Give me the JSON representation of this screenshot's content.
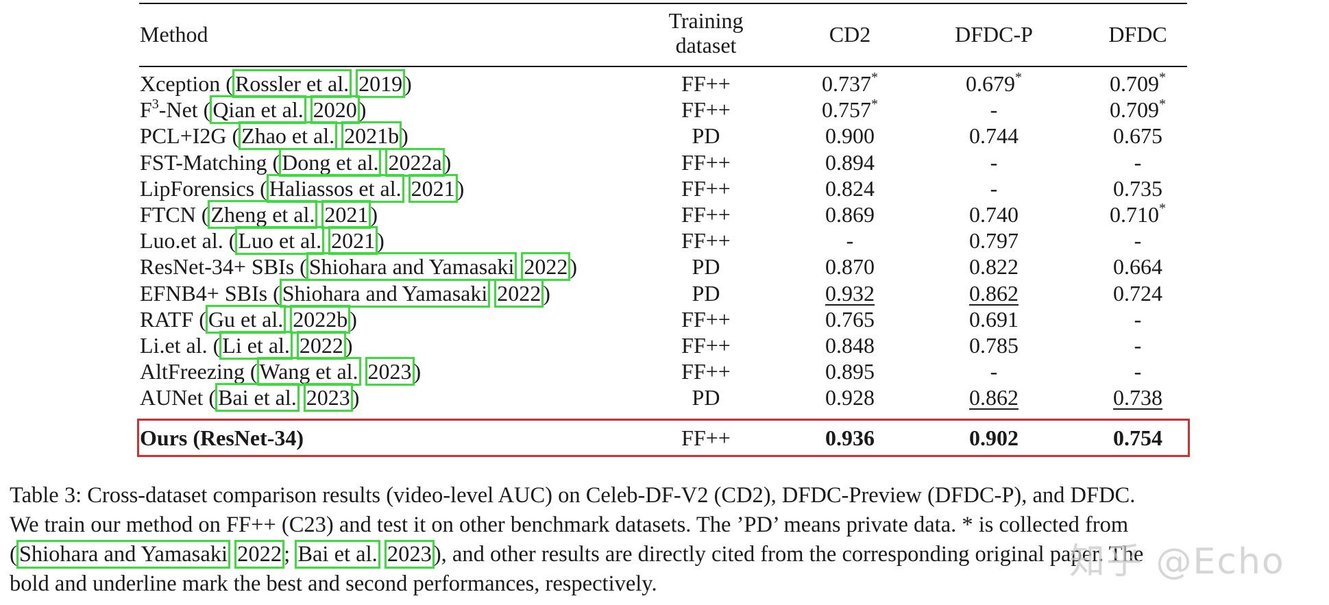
{
  "headers": {
    "method": "Method",
    "training_line1": "Training",
    "training_line2": "dataset",
    "cd2": "CD2",
    "dfdcp": "DFDC-P",
    "dfdc": "DFDC"
  },
  "rows": [
    {
      "name": "Xception (",
      "cite1": "Rossler et al.",
      "cite2": "2019",
      "close": ")",
      "train": "FF++",
      "cd2": "0.737",
      "cd2_star": "*",
      "dfdcp": "0.679",
      "dfdcp_star": "*",
      "dfdc": "0.709",
      "dfdc_star": "*"
    },
    {
      "name_pre": "F",
      "name_sup": "3",
      "name": "-Net (",
      "cite1": "Qian et al.",
      "cite2": "2020",
      "close": ")",
      "train": "FF++",
      "cd2": "0.757",
      "cd2_star": "*",
      "dfdcp": "-",
      "dfdc": "0.709",
      "dfdc_star": "*"
    },
    {
      "name": "PCL+I2G (",
      "cite1": "Zhao et al.",
      "cite2": "2021b",
      "close": ")",
      "train": "PD",
      "cd2": "0.900",
      "dfdcp": "0.744",
      "dfdc": "0.675"
    },
    {
      "name": "FST-Matching (",
      "cite1": "Dong et al.",
      "cite2": "2022a",
      "close": ")",
      "train": "FF++",
      "cd2": "0.894",
      "dfdcp": "-",
      "dfdc": "-"
    },
    {
      "name": "LipForensics (",
      "cite1": "Haliassos et al.",
      "cite2": "2021",
      "close": ")",
      "train": "FF++",
      "cd2": "0.824",
      "dfdcp": "-",
      "dfdc": "0.735"
    },
    {
      "name": "FTCN (",
      "cite1": "Zheng et al.",
      "cite2": "2021",
      "close": ")",
      "train": "FF++",
      "cd2": "0.869",
      "dfdcp": "0.740",
      "dfdc": "0.710",
      "dfdc_star": "*"
    },
    {
      "name": "Luo.et al. (",
      "cite1": "Luo et al.",
      "cite2": "2021",
      "close": ")",
      "train": "FF++",
      "cd2": "-",
      "dfdcp": "0.797",
      "dfdc": "-"
    },
    {
      "name": "ResNet-34+ SBIs (",
      "cite1": "Shiohara and Yamasaki",
      "cite2": "2022",
      "close": ")",
      "train": "PD",
      "cd2": "0.870",
      "dfdcp": "0.822",
      "dfdc": "0.664"
    },
    {
      "name": "EFNB4+ SBIs (",
      "cite1": "Shiohara and Yamasaki",
      "cite2": "2022",
      "close": ")",
      "train": "PD",
      "cd2": "0.932",
      "dfdcp": "0.862",
      "dfdc": "0.724"
    },
    {
      "name": "RATF (",
      "cite1": "Gu et al.",
      "cite2": "2022b",
      "close": ")",
      "train": "FF++",
      "cd2": "0.765",
      "dfdcp": "0.691",
      "dfdc": "-"
    },
    {
      "name": "Li.et al. (",
      "cite1": "Li et al.",
      "cite2": "2022",
      "close": ")",
      "train": "FF++",
      "cd2": "0.848",
      "dfdcp": "0.785",
      "dfdc": "-"
    },
    {
      "name": "AltFreezing (",
      "cite1": "Wang et al.",
      "cite2": "2023",
      "close": ")",
      "train": "FF++",
      "cd2": "0.895",
      "dfdcp": "-",
      "dfdc": "-"
    },
    {
      "name": "AUNet (",
      "cite1": "Bai et al.",
      "cite2": "2023",
      "close": ")",
      "train": "PD",
      "cd2": "0.928",
      "dfdcp": "0.862",
      "dfdc": "0.738"
    }
  ],
  "ours": {
    "name": "Ours (ResNet-34)",
    "train": "FF++",
    "cd2": "0.936",
    "dfdcp": "0.902",
    "dfdc": "0.754"
  },
  "caption": {
    "line1": "Table 3: Cross-dataset comparison results (video-level AUC) on Celeb-DF-V2 (CD2), DFDC-Preview (DFDC-P), and DFDC.",
    "line2": "We train our method on FF++ (C23) and test it on other benchmark datasets. The ’PD’ means private data. * is collected from",
    "line3_open": "(",
    "line3_cite1": "Shiohara and Yamasaki",
    "line3_cite2": "2022",
    "line3_sep": "; ",
    "line3_cite3": "Bai et al.",
    "line3_cite4": "2023",
    "line3_rest": "), and other results are directly cited from the corresponding original paper. The",
    "line4": "bold and underline mark the best and second performances, respectively."
  },
  "watermark": "知乎 @Echo",
  "colors": {
    "citation_box": "#3cdc3c",
    "highlight_box": "#d32f2f"
  }
}
